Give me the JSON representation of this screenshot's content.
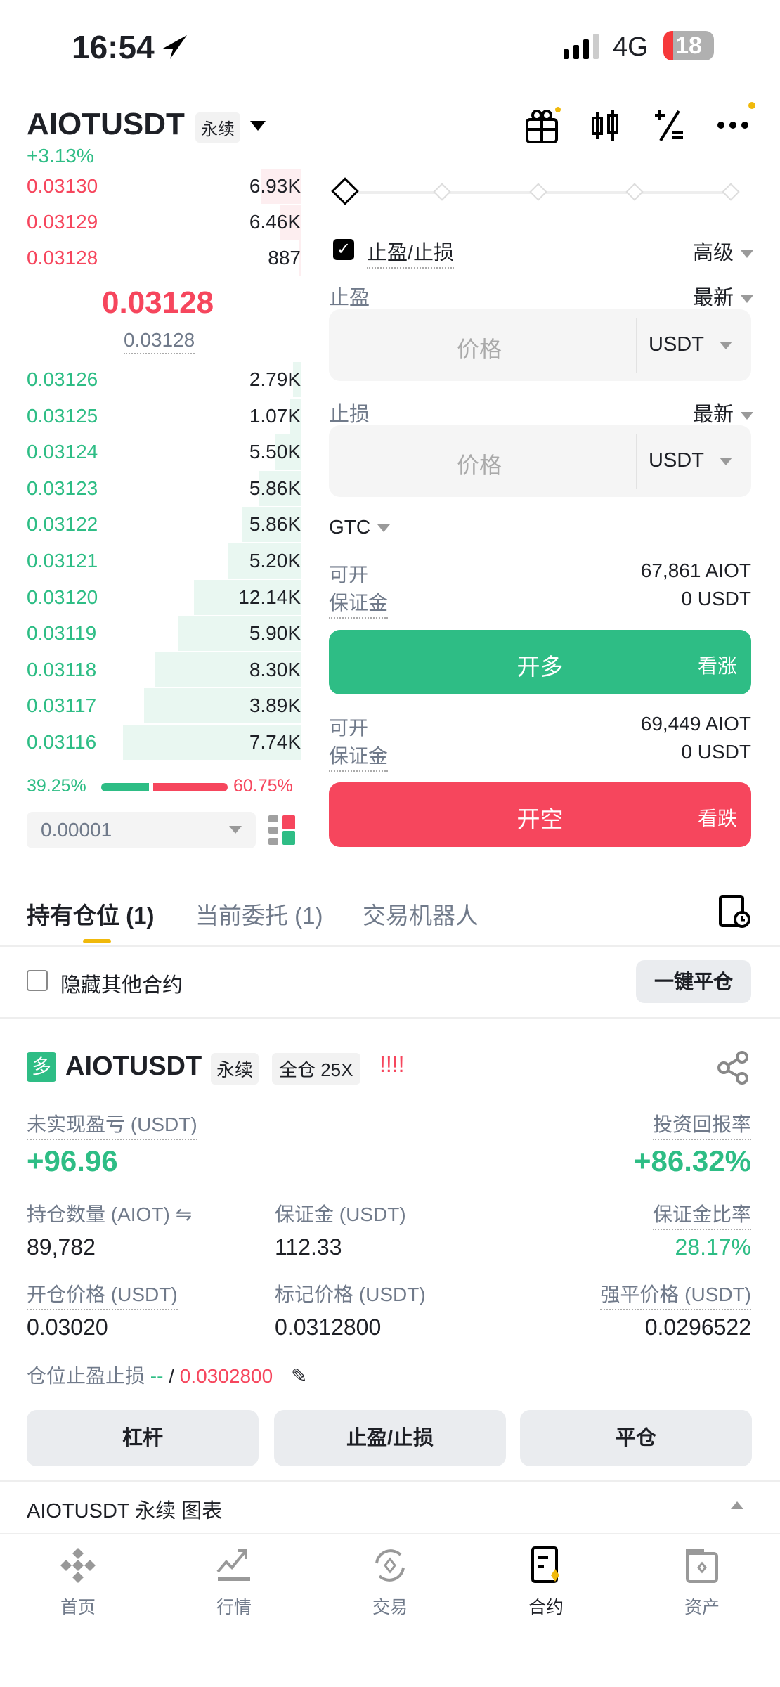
{
  "status": {
    "time": "16:54",
    "network": "4G",
    "battery": "18"
  },
  "header": {
    "symbol": "AIOTUSDT",
    "type": "永续",
    "change": "+3.13%"
  },
  "orderbook": {
    "asks": [
      {
        "price": "0.03130",
        "qty": "6.93K"
      },
      {
        "price": "0.03129",
        "qty": "6.46K"
      },
      {
        "price": "0.03128",
        "qty": "887"
      }
    ],
    "last_price": "0.03128",
    "mark_price": "0.03128",
    "bids": [
      {
        "price": "0.03126",
        "qty": "2.79K"
      },
      {
        "price": "0.03125",
        "qty": "1.07K"
      },
      {
        "price": "0.03124",
        "qty": "5.50K"
      },
      {
        "price": "0.03123",
        "qty": "5.86K"
      },
      {
        "price": "0.03122",
        "qty": "5.86K"
      },
      {
        "price": "0.03121",
        "qty": "5.20K"
      },
      {
        "price": "0.03120",
        "qty": "12.14K"
      },
      {
        "price": "0.03119",
        "qty": "5.90K"
      },
      {
        "price": "0.03118",
        "qty": "8.30K"
      },
      {
        "price": "0.03117",
        "qty": "3.89K"
      },
      {
        "price": "0.03116",
        "qty": "7.74K"
      }
    ],
    "buy_ratio": "39.25%",
    "sell_ratio": "60.75%",
    "buy_ratio_value": 39.25,
    "precision": "0.00001"
  },
  "form": {
    "leverage_slider_value": 0,
    "tpsl_label": "止盈/止损",
    "tpsl_checked": true,
    "advanced": "高级",
    "tp_label": "止盈",
    "tp_trigger": "最新",
    "tp_placeholder": "价格",
    "tp_unit": "USDT",
    "sl_label": "止损",
    "sl_trigger": "最新",
    "sl_placeholder": "价格",
    "sl_unit": "USDT",
    "tif": "GTC",
    "long": {
      "avail_label": "可开",
      "avail": "67,861 AIOT",
      "margin_label": "保证金",
      "margin": "0 USDT",
      "button": "开多",
      "hint": "看涨"
    },
    "short": {
      "avail_label": "可开",
      "avail": "69,449 AIOT",
      "margin_label": "保证金",
      "margin": "0 USDT",
      "button": "开空",
      "hint": "看跌"
    }
  },
  "tabs": [
    {
      "label": "持有仓位 (1)"
    },
    {
      "label": "当前委托 (1)"
    },
    {
      "label": "交易机器人"
    }
  ],
  "hide_other": "隐藏其他合约",
  "close_all": "一键平仓",
  "position": {
    "side": "多",
    "symbol": "AIOTUSDT",
    "type": "永续",
    "margin_mode": "全仓 25X",
    "alert": "!!!!",
    "pnl_label": "未实现盈亏 (USDT)",
    "pnl": "+96.96",
    "roe_label": "投资回报率",
    "roe": "+86.32%",
    "size_label": "持仓数量 (AIOT)",
    "size": "89,782",
    "margin_label": "保证金 (USDT)",
    "margin": "112.33",
    "margin_ratio_label": "保证金比率",
    "margin_ratio": "28.17%",
    "entry_label": "开仓价格 (USDT)",
    "entry": "0.03020",
    "mark_label": "标记价格 (USDT)",
    "mark": "0.0312800",
    "liq_label": "强平价格 (USDT)",
    "liq": "0.0296522",
    "tpsl_label": "仓位止盈止损",
    "tp": "--",
    "sep": "/",
    "sl": "0.0302800",
    "buttons": [
      "杠杆",
      "止盈/止损",
      "平仓"
    ]
  },
  "chart_bar": "AIOTUSDT 永续 图表",
  "nav": [
    {
      "label": "首页",
      "icon": "binance-logo-icon"
    },
    {
      "label": "行情",
      "icon": "chart-trend-icon"
    },
    {
      "label": "交易",
      "icon": "exchange-icon"
    },
    {
      "label": "合约",
      "icon": "futures-icon",
      "active": true
    },
    {
      "label": "资产",
      "icon": "wallet-icon"
    }
  ],
  "colors": {
    "green": "#2ebd85",
    "red": "#f6465d",
    "accent": "#f0b90b"
  }
}
